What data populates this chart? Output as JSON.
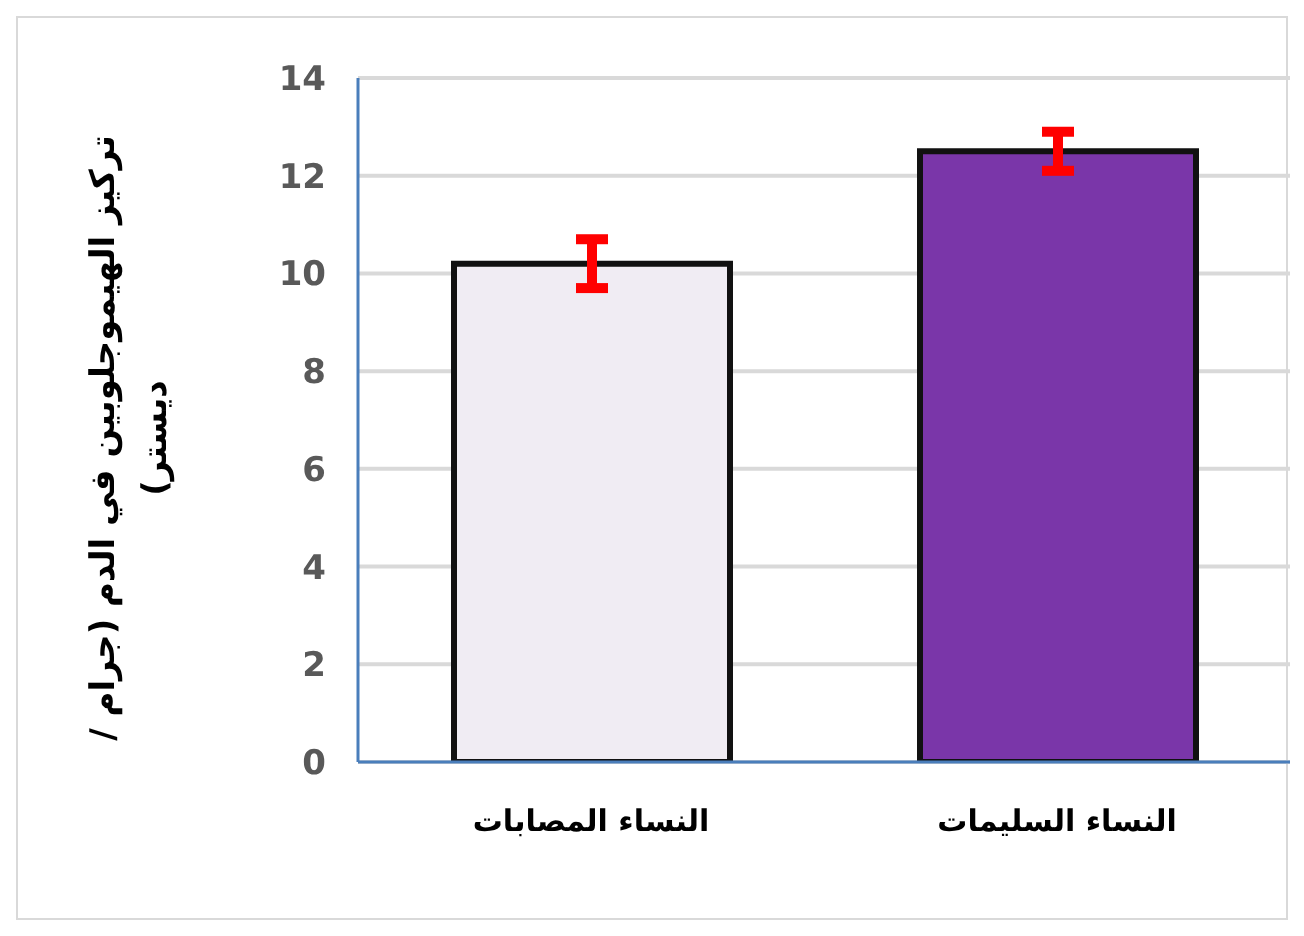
{
  "chart_data": {
    "type": "bar",
    "ylabel": "تركيز الهيموجلوبين في الدم (جرام /ديستر)",
    "categories": [
      "النساء المصابات",
      "النساء السليمات"
    ],
    "values": [
      10.2,
      12.5
    ],
    "errors": [
      0.5,
      0.4
    ],
    "colors": [
      "#f0ecf3",
      "#7a36a9"
    ],
    "ylim": [
      0,
      14
    ],
    "yticks": [
      0,
      2,
      4,
      6,
      8,
      10,
      12,
      14
    ],
    "grid": "y"
  }
}
